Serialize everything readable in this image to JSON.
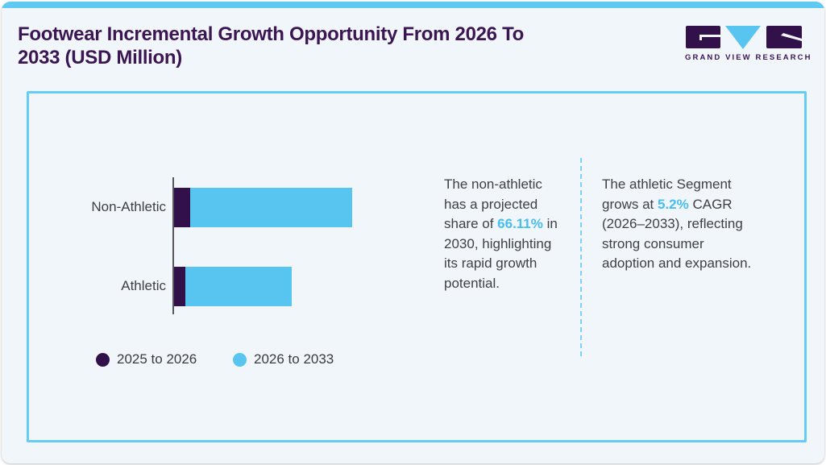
{
  "page": {
    "title": "Footwear Incremental Growth Opportunity From 2026 To 2033 (USD Million)"
  },
  "brand": {
    "wordmark": "GRAND VIEW RESEARCH"
  },
  "colors": {
    "brand_purple": "#32114b",
    "brand_blue": "#58c5f0",
    "title_purple": "#3b1653",
    "card_border_blue": "#64ccf5",
    "top_strip_blue": "#5ec9f2",
    "highlight_blue": "#47bdf0",
    "body_text": "#3f4046",
    "page_background": "#f1f6fa"
  },
  "chart_data": {
    "type": "bar",
    "orientation": "horizontal",
    "stacked": true,
    "title": "Footwear Incremental Growth Opportunity From 2026 To 2033 (USD Million)",
    "categories": [
      "Non-Athletic",
      "Athletic"
    ],
    "series": [
      {
        "name": "2025 to 2026",
        "color": "#32114b",
        "values": [
          20,
          14
        ]
      },
      {
        "name": "2026 to 2033",
        "color": "#58c5f0",
        "values": [
          201,
          132
        ]
      }
    ],
    "value_axis": "none shown (relative bar lengths in px, USD Million implied)",
    "legend_position": "bottom-left",
    "grid": false
  },
  "insights": [
    {
      "prefix": "The non-athletic has a projected share of ",
      "highlight": "66.11%",
      "suffix": " in 2030, highlighting its rapid growth potential."
    },
    {
      "prefix": "The athletic Segment grows at ",
      "highlight": "5.2%",
      "suffix": " CAGR (2026–2033), reflecting strong consumer adoption and expansion."
    }
  ]
}
